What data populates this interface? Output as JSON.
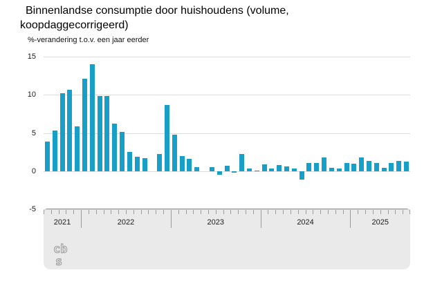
{
  "header": {
    "title": "Binnenlandse consumptie door huishoudens (volume, koopdaggecorrigeerd)",
    "title_line1": "Binnenlandse consumptie door huishoudens (volume,",
    "title_line2": "koopdaggecorrigeerd)",
    "subtitle": "%-verandering t.o.v. een jaar eerder"
  },
  "colors": {
    "bar": "#189fc7",
    "grid": "#dcdcdc",
    "band_bg": "#eaeaea",
    "band_border": "#8f8f8f",
    "tick": "#9b9b9b",
    "text": "#1a1a1a",
    "logo": "#9a9a9a"
  },
  "footer": {
    "logo": "cbs-logo"
  },
  "chart_data": {
    "type": "bar",
    "title": "Binnenlandse consumptie door huishoudens (volume, koopdaggecorrigeerd)",
    "ylabel": "%-verandering t.o.v. een jaar eerder",
    "xlabel": "",
    "ylim": [
      -5,
      15
    ],
    "yticks": [
      15,
      10,
      5,
      0,
      -5
    ],
    "grid": true,
    "legend": false,
    "x_axis": {
      "unit": "month",
      "first_month": "2021-08",
      "last_month": "2025-08",
      "years": [
        {
          "label": "2021",
          "months": 5
        },
        {
          "label": "2022",
          "months": 12
        },
        {
          "label": "2023",
          "months": 12
        },
        {
          "label": "2024",
          "months": 12
        },
        {
          "label": "2025",
          "months": 8
        }
      ]
    },
    "series": [
      {
        "name": "%-verandering t.o.v. een jaar eerder",
        "values": [
          3.9,
          5.3,
          10.2,
          10.7,
          5.9,
          12.1,
          14.0,
          9.8,
          9.8,
          6.2,
          5.1,
          2.5,
          1.9,
          1.7,
          0.0,
          2.2,
          8.7,
          4.8,
          2.0,
          1.6,
          0.5,
          0.0,
          0.5,
          -0.5,
          0.7,
          -0.2,
          2.2,
          0.3,
          0.1,
          0.9,
          0.3,
          0.8,
          0.6,
          0.3,
          -1.1,
          1.1,
          1.1,
          1.8,
          0.4,
          0.3,
          1.1,
          1.0,
          1.8,
          1.3,
          1.1,
          0.4,
          1.1,
          1.3,
          1.2
        ]
      }
    ]
  }
}
